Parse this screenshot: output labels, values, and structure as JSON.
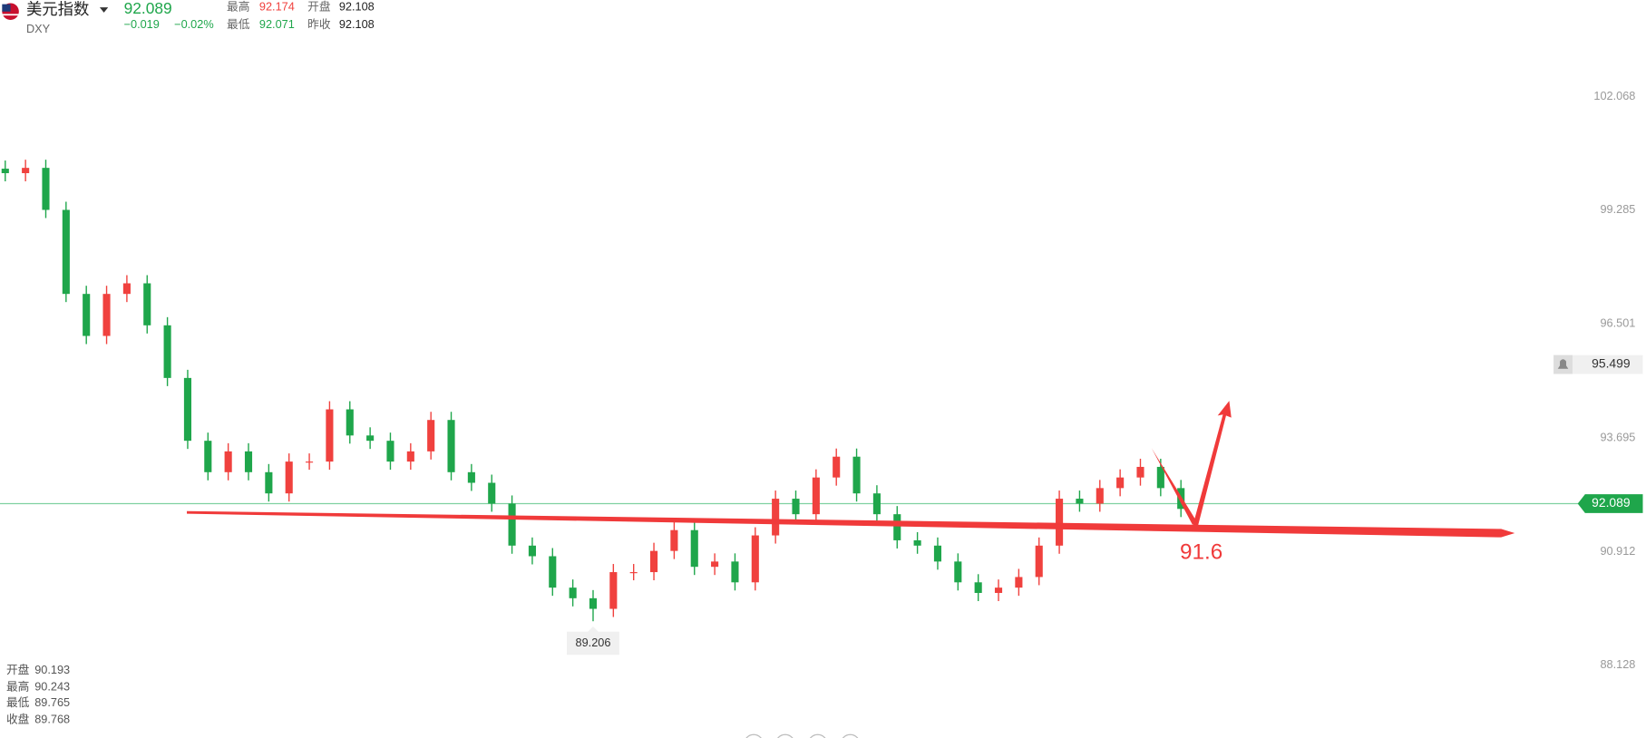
{
  "header": {
    "name": "美元指数",
    "symbol": "DXY",
    "price": "92.089",
    "change": "−0.019",
    "change_pct": "−0.02%",
    "stats": [
      {
        "label": "最高",
        "value": "92.174"
      },
      {
        "label": "开盘",
        "value": "92.108"
      },
      {
        "label": "最低",
        "value": "92.071"
      },
      {
        "label": "昨收",
        "value": "92.108"
      }
    ]
  },
  "ohlc_panel": [
    {
      "label": "开盘",
      "value": "90.193"
    },
    {
      "label": "最高",
      "value": "90.243"
    },
    {
      "label": "最低",
      "value": "89.765"
    },
    {
      "label": "收盘",
      "value": "89.768"
    }
  ],
  "chart_data": {
    "type": "candlestick",
    "up_color": "#f0413e",
    "down_color": "#1fa64b",
    "ylim": [
      86.35,
      104.435
    ],
    "yticks": [
      102.068,
      99.285,
      96.501,
      93.695,
      90.912,
      88.128
    ],
    "last_price": 92.089,
    "alert_price": 95.499,
    "annotation": "91.6",
    "open": [
      100.3,
      100.19,
      100.32,
      99.29,
      97.23,
      96.2,
      97.23,
      97.49,
      96.46,
      95.17,
      93.63,
      92.86,
      93.37,
      92.86,
      92.34,
      93.12,
      93.12,
      94.4,
      93.76,
      93.63,
      93.12,
      93.37,
      94.14,
      92.86,
      92.6,
      92.09,
      91.06,
      90.8,
      90.03,
      89.77,
      89.51,
      90.41,
      90.41,
      90.93,
      91.44,
      90.54,
      90.67,
      90.16,
      91.31,
      92.21,
      91.83,
      92.73,
      93.24,
      92.34,
      91.83,
      91.19,
      91.06,
      90.67,
      90.16,
      89.9,
      90.03,
      90.29,
      91.06,
      92.21,
      92.09,
      92.47,
      92.73,
      92.99,
      92.47
    ],
    "high": [
      100.5,
      100.52,
      100.52,
      99.49,
      97.43,
      97.43,
      97.69,
      97.69,
      96.66,
      95.37,
      93.83,
      93.57,
      93.57,
      93.06,
      93.32,
      93.32,
      94.6,
      94.6,
      93.96,
      93.83,
      93.57,
      94.34,
      94.34,
      93.06,
      92.8,
      92.29,
      91.26,
      91.0,
      90.23,
      89.97,
      90.61,
      90.61,
      91.13,
      91.64,
      91.64,
      90.87,
      90.87,
      91.51,
      92.41,
      92.41,
      92.93,
      93.44,
      93.44,
      92.54,
      92.03,
      91.39,
      91.26,
      90.87,
      90.36,
      90.23,
      90.49,
      91.26,
      92.41,
      92.41,
      92.67,
      92.93,
      93.19,
      93.19,
      92.67
    ],
    "low": [
      99.99,
      99.99,
      99.09,
      97.03,
      96.0,
      96.0,
      97.03,
      96.26,
      94.97,
      93.43,
      92.66,
      92.66,
      92.66,
      92.14,
      92.14,
      92.92,
      92.92,
      93.56,
      93.43,
      92.92,
      92.92,
      93.17,
      92.66,
      92.4,
      91.89,
      90.86,
      90.6,
      89.83,
      89.57,
      89.206,
      89.31,
      90.21,
      90.21,
      90.73,
      90.34,
      90.34,
      89.96,
      89.96,
      91.11,
      91.63,
      91.63,
      92.53,
      92.14,
      91.63,
      90.99,
      90.86,
      90.47,
      89.96,
      89.7,
      89.7,
      89.83,
      90.09,
      90.86,
      91.89,
      91.89,
      92.27,
      92.53,
      92.27,
      91.76
    ],
    "close": [
      100.19,
      100.32,
      99.29,
      97.23,
      96.2,
      97.23,
      97.49,
      96.46,
      95.17,
      93.63,
      92.86,
      93.37,
      92.86,
      92.34,
      93.12,
      93.12,
      94.4,
      93.76,
      93.63,
      93.12,
      93.37,
      94.14,
      92.86,
      92.6,
      92.09,
      91.06,
      90.8,
      90.03,
      89.77,
      89.51,
      90.41,
      90.41,
      90.93,
      91.44,
      90.54,
      90.67,
      90.16,
      91.31,
      92.21,
      91.83,
      92.73,
      93.24,
      92.34,
      91.83,
      91.19,
      91.06,
      90.67,
      90.16,
      89.9,
      90.03,
      90.29,
      91.06,
      92.21,
      92.09,
      92.47,
      92.73,
      92.99,
      92.47,
      91.96
    ]
  }
}
